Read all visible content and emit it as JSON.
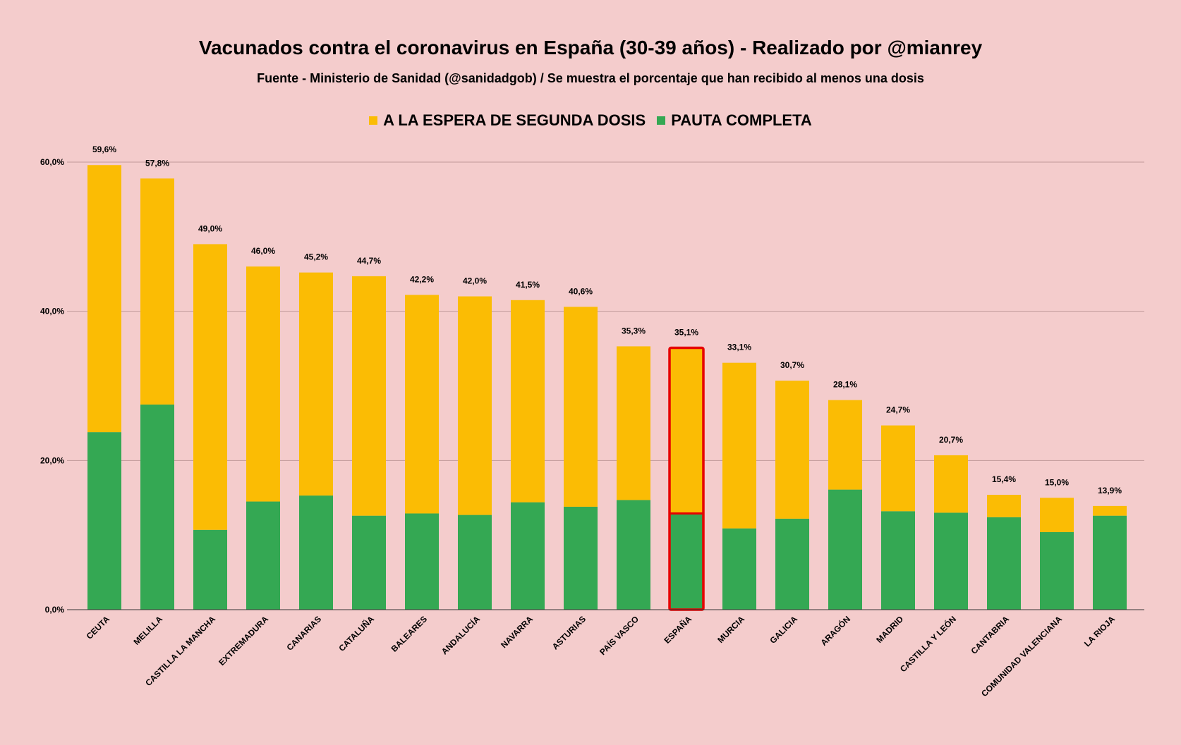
{
  "chart_data": {
    "type": "bar",
    "stacked": true,
    "title": "Vacunados contra el coronavirus en España (30-39 años) - Realizado por @mianrey",
    "subtitle": "Fuente - Ministerio de Sanidad (@sanidadgob) / Se muestra el porcentaje que han recibido al menos una dosis",
    "legend_position": "top-center",
    "xlabel": "",
    "ylabel": "",
    "ylim": [
      0,
      60
    ],
    "yticks": [
      0,
      20,
      40,
      60
    ],
    "ytick_labels": [
      "0,0%",
      "20,0%",
      "40,0%",
      "60,0%"
    ],
    "grid": true,
    "highlight_category": "ESPAÑA",
    "highlight_color": "#e60000",
    "categories": [
      "CEUTA",
      "MELILLA",
      "CASTILLA LA MANCHA",
      "EXTREMADURA",
      "CANARIAS",
      "CATALUÑA",
      "BALEARES",
      "ANDALUCÍA",
      "NAVARRA",
      "ASTURIAS",
      "PAÍS VASCO",
      "ESPAÑA",
      "MURCIA",
      "GALICIA",
      "ARAGÓN",
      "MADRID",
      "CASTILLA Y LEÓN",
      "CANTABRIA",
      "COMUNIDAD VALENCIANA",
      "LA RIOJA"
    ],
    "series": [
      {
        "name": "PAUTA COMPLETA",
        "color": "#34a853",
        "values": [
          23.8,
          27.5,
          10.7,
          14.5,
          15.3,
          12.6,
          12.9,
          12.7,
          14.4,
          13.8,
          14.7,
          12.9,
          10.9,
          12.2,
          16.1,
          13.2,
          13.0,
          12.4,
          10.4,
          12.6
        ]
      },
      {
        "name": "A LA ESPERA DE SEGUNDA DOSIS",
        "color": "#fbbc04",
        "values": [
          35.8,
          30.3,
          38.3,
          31.5,
          29.9,
          32.1,
          29.3,
          29.3,
          27.1,
          26.8,
          20.6,
          22.2,
          22.2,
          18.5,
          12.0,
          11.5,
          7.7,
          3.0,
          4.6,
          1.3
        ]
      }
    ],
    "totals": [
      59.6,
      57.8,
      49.0,
      46.0,
      45.2,
      44.7,
      42.2,
      42.0,
      41.5,
      40.6,
      35.3,
      35.1,
      33.1,
      30.7,
      28.1,
      24.7,
      20.7,
      15.4,
      15.0,
      13.9
    ],
    "total_labels": [
      "59,6%",
      "57,8%",
      "49,0%",
      "46,0%",
      "45,2%",
      "44,7%",
      "42,2%",
      "42,0%",
      "41,5%",
      "40,6%",
      "35,3%",
      "35,1%",
      "33,1%",
      "30,7%",
      "28,1%",
      "24,7%",
      "20,7%",
      "15,4%",
      "15,0%",
      "13,9%"
    ],
    "gridline_color": "#c09999",
    "axis_color": "#333333"
  }
}
